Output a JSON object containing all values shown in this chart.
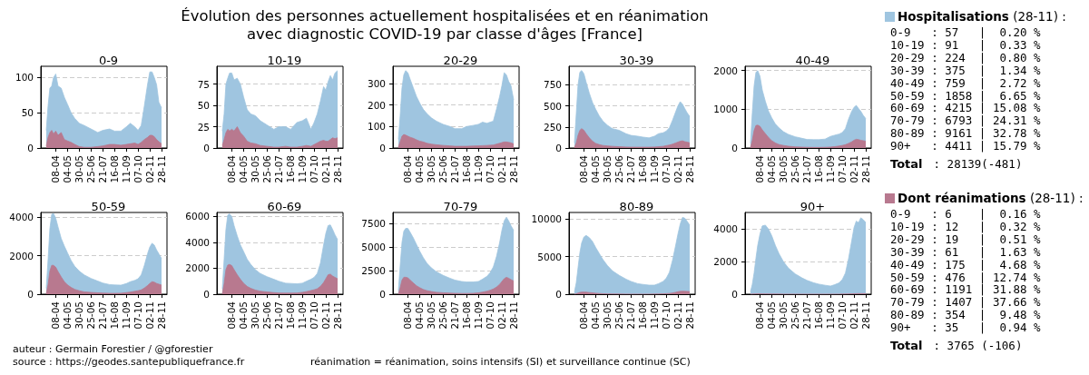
{
  "chart_data": [
    {
      "type": "other",
      "title": "Évolution des personnes actuellement hospitalisées et en réanimation\navec diagnostic COVID-19 par classe d'âges [France]",
      "annotations": [
        "auteur : Germain Forestier / @gforestier",
        "source : https://geodes.santepubliquefrance.fr",
        "réanimation = réanimation, soins intensifs (SI) et surveillance continue (SC)"
      ]
    },
    {
      "type": "area",
      "title": "0-9",
      "grid": "y",
      "xlim": [
        "--03-06",
        "--12-10"
      ],
      "xticks": [
        {
          "value": "--04-08",
          "label": "08-04"
        },
        {
          "value": "--05-04",
          "label": "04-05"
        },
        {
          "value": "--05-30",
          "label": "30-05"
        },
        {
          "value": "--06-25",
          "label": "25-06"
        },
        {
          "value": "--07-21",
          "label": "21-07"
        },
        {
          "value": "--08-16",
          "label": "16-08"
        },
        {
          "value": "--09-11",
          "label": "11-09"
        },
        {
          "value": "--10-07",
          "label": "07-10"
        },
        {
          "value": "--11-02",
          "label": "02-11"
        },
        {
          "value": "--11-28",
          "label": "28-11"
        }
      ],
      "ylim": [
        0,
        116
      ],
      "yticks": [
        0,
        50,
        100
      ],
      "x": [
        "--03-18",
        "--03-22",
        "--03-26",
        "--03-30",
        "--04-03",
        "--04-08",
        "--04-13",
        "--04-20",
        "--04-27",
        "--05-04",
        "--05-12",
        "--05-20",
        "--05-30",
        "--06-10",
        "--06-25",
        "--07-10",
        "--07-21",
        "--08-05",
        "--08-16",
        "--08-30",
        "--09-11",
        "--09-20",
        "--09-30",
        "--10-07",
        "--10-14",
        "--10-21",
        "--10-28",
        "--11-02",
        "--11-07",
        "--11-12",
        "--11-17",
        "--11-22",
        "--11-28"
      ],
      "series": [
        {
          "color": "#9fc5e0",
          "values": [
            25,
            60,
            85,
            88,
            100,
            105,
            88,
            85,
            72,
            62,
            50,
            42,
            35,
            32,
            27,
            22,
            25,
            27,
            24,
            24,
            30,
            35,
            30,
            25,
            32,
            60,
            90,
            108,
            108,
            100,
            90,
            65,
            57
          ]
        },
        {
          "color": "#b8798f",
          "values": [
            3,
            15,
            22,
            25,
            20,
            24,
            18,
            22,
            12,
            10,
            8,
            5,
            2,
            1,
            1,
            2,
            3,
            5,
            5,
            4,
            5,
            6,
            7,
            5,
            8,
            12,
            15,
            18,
            18,
            16,
            12,
            9,
            6
          ]
        }
      ]
    },
    {
      "type": "area",
      "title": "10-19",
      "grid": "y",
      "xlim": [
        "--03-06",
        "--12-10"
      ],
      "xticks": [
        {
          "value": "--04-08",
          "label": "08-04"
        },
        {
          "value": "--05-04",
          "label": "04-05"
        },
        {
          "value": "--05-30",
          "label": "30-05"
        },
        {
          "value": "--06-25",
          "label": "25-06"
        },
        {
          "value": "--07-21",
          "label": "21-07"
        },
        {
          "value": "--08-16",
          "label": "16-08"
        },
        {
          "value": "--09-11",
          "label": "11-09"
        },
        {
          "value": "--10-07",
          "label": "07-10"
        },
        {
          "value": "--11-02",
          "label": "02-11"
        },
        {
          "value": "--11-28",
          "label": "28-11"
        }
      ],
      "ylim": [
        0,
        96
      ],
      "yticks": [
        0,
        25,
        50,
        75
      ],
      "x": [
        "--03-18",
        "--03-22",
        "--03-26",
        "--03-30",
        "--04-03",
        "--04-08",
        "--04-13",
        "--04-20",
        "--04-27",
        "--05-04",
        "--05-12",
        "--05-20",
        "--05-30",
        "--06-10",
        "--06-25",
        "--07-10",
        "--07-21",
        "--08-05",
        "--08-16",
        "--08-30",
        "--09-11",
        "--09-20",
        "--09-30",
        "--10-07",
        "--10-14",
        "--10-21",
        "--10-28",
        "--11-02",
        "--11-07",
        "--11-12",
        "--11-17",
        "--11-22",
        "--11-28"
      ],
      "series": [
        {
          "color": "#9fc5e0",
          "values": [
            20,
            40,
            75,
            82,
            88,
            88,
            80,
            82,
            75,
            60,
            45,
            40,
            38,
            32,
            27,
            22,
            25,
            25,
            22,
            30,
            32,
            35,
            22,
            30,
            40,
            55,
            72,
            68,
            78,
            85,
            80,
            88,
            91
          ]
        },
        {
          "color": "#b8798f",
          "values": [
            3,
            10,
            18,
            22,
            20,
            22,
            20,
            25,
            18,
            14,
            8,
            6,
            5,
            3,
            2,
            1,
            1,
            2,
            1,
            1,
            2,
            3,
            2,
            4,
            6,
            8,
            9,
            8,
            8,
            10,
            12,
            11,
            12
          ]
        }
      ]
    },
    {
      "type": "area",
      "title": "20-29",
      "grid": "y",
      "xlim": [
        "--03-06",
        "--12-10"
      ],
      "xticks": [
        {
          "value": "--04-08",
          "label": "08-04"
        },
        {
          "value": "--05-04",
          "label": "04-05"
        },
        {
          "value": "--05-30",
          "label": "30-05"
        },
        {
          "value": "--06-25",
          "label": "25-06"
        },
        {
          "value": "--07-21",
          "label": "21-07"
        },
        {
          "value": "--08-16",
          "label": "16-08"
        },
        {
          "value": "--09-11",
          "label": "11-09"
        },
        {
          "value": "--10-07",
          "label": "07-10"
        },
        {
          "value": "--11-02",
          "label": "02-11"
        },
        {
          "value": "--11-28",
          "label": "28-11"
        }
      ],
      "ylim": [
        0,
        380
      ],
      "yticks": [
        0,
        100,
        200,
        300
      ],
      "x": [
        "--03-18",
        "--03-22",
        "--03-26",
        "--03-30",
        "--04-03",
        "--04-08",
        "--04-13",
        "--04-20",
        "--04-27",
        "--05-04",
        "--05-12",
        "--05-20",
        "--05-30",
        "--06-10",
        "--06-25",
        "--07-10",
        "--07-21",
        "--08-05",
        "--08-16",
        "--08-30",
        "--09-11",
        "--09-20",
        "--09-30",
        "--10-07",
        "--10-14",
        "--10-21",
        "--10-28",
        "--11-02",
        "--11-07",
        "--11-12",
        "--11-17",
        "--11-22",
        "--11-28"
      ],
      "series": [
        {
          "color": "#9fc5e0",
          "values": [
            40,
            150,
            280,
            340,
            360,
            350,
            320,
            280,
            240,
            210,
            180,
            160,
            140,
            125,
            110,
            100,
            90,
            90,
            100,
            105,
            110,
            120,
            115,
            120,
            125,
            180,
            240,
            290,
            350,
            340,
            310,
            290,
            224
          ]
        },
        {
          "color": "#b8798f",
          "values": [
            5,
            30,
            55,
            63,
            60,
            55,
            50,
            45,
            38,
            32,
            28,
            22,
            18,
            15,
            12,
            10,
            8,
            8,
            8,
            9,
            10,
            11,
            12,
            13,
            14,
            18,
            22,
            25,
            28,
            28,
            26,
            24,
            19
          ]
        }
      ]
    },
    {
      "type": "area",
      "title": "30-39",
      "grid": "y",
      "xlim": [
        "--03-06",
        "--12-10"
      ],
      "xticks": [
        {
          "value": "--04-08",
          "label": "08-04"
        },
        {
          "value": "--05-04",
          "label": "04-05"
        },
        {
          "value": "--05-30",
          "label": "30-05"
        },
        {
          "value": "--06-25",
          "label": "25-06"
        },
        {
          "value": "--07-21",
          "label": "21-07"
        },
        {
          "value": "--08-16",
          "label": "16-08"
        },
        {
          "value": "--09-11",
          "label": "11-09"
        },
        {
          "value": "--10-07",
          "label": "07-10"
        },
        {
          "value": "--11-02",
          "label": "02-11"
        },
        {
          "value": "--11-28",
          "label": "28-11"
        }
      ],
      "ylim": [
        0,
        970
      ],
      "yticks": [
        0,
        250,
        500,
        750
      ],
      "x": [
        "--03-18",
        "--03-22",
        "--03-26",
        "--03-30",
        "--04-03",
        "--04-08",
        "--04-13",
        "--04-20",
        "--04-27",
        "--05-04",
        "--05-12",
        "--05-20",
        "--05-30",
        "--06-10",
        "--06-25",
        "--07-10",
        "--07-21",
        "--08-05",
        "--08-16",
        "--08-30",
        "--09-11",
        "--09-20",
        "--09-30",
        "--10-07",
        "--10-14",
        "--10-21",
        "--10-28",
        "--11-02",
        "--11-07",
        "--11-12",
        "--11-17",
        "--11-22",
        "--11-28"
      ],
      "series": [
        {
          "color": "#9fc5e0",
          "values": [
            60,
            400,
            750,
            900,
            920,
            880,
            780,
            650,
            540,
            460,
            380,
            320,
            270,
            230,
            210,
            170,
            150,
            140,
            130,
            120,
            140,
            170,
            180,
            200,
            240,
            330,
            430,
            500,
            550,
            520,
            470,
            420,
            375
          ]
        },
        {
          "color": "#b8798f",
          "values": [
            5,
            60,
            150,
            210,
            230,
            210,
            170,
            120,
            80,
            55,
            40,
            30,
            25,
            20,
            15,
            12,
            10,
            10,
            10,
            10,
            12,
            15,
            20,
            28,
            35,
            45,
            60,
            70,
            80,
            85,
            75,
            70,
            61
          ]
        }
      ]
    },
    {
      "type": "area",
      "title": "40-49",
      "grid": "y",
      "xlim": [
        "--03-06",
        "--12-10"
      ],
      "xticks": [
        {
          "value": "--04-08",
          "label": "08-04"
        },
        {
          "value": "--05-04",
          "label": "04-05"
        },
        {
          "value": "--05-30",
          "label": "30-05"
        },
        {
          "value": "--06-25",
          "label": "25-06"
        },
        {
          "value": "--07-21",
          "label": "21-07"
        },
        {
          "value": "--08-16",
          "label": "16-08"
        },
        {
          "value": "--09-11",
          "label": "11-09"
        },
        {
          "value": "--10-07",
          "label": "07-10"
        },
        {
          "value": "--11-02",
          "label": "02-11"
        },
        {
          "value": "--11-28",
          "label": "28-11"
        }
      ],
      "ylim": [
        0,
        2110
      ],
      "yticks": [
        0,
        1000,
        2000
      ],
      "x": [
        "--03-18",
        "--03-22",
        "--03-26",
        "--03-30",
        "--04-03",
        "--04-08",
        "--04-13",
        "--04-20",
        "--04-27",
        "--05-04",
        "--05-12",
        "--05-20",
        "--05-30",
        "--06-10",
        "--06-25",
        "--07-10",
        "--07-21",
        "--08-05",
        "--08-16",
        "--08-30",
        "--09-11",
        "--09-20",
        "--09-30",
        "--10-07",
        "--10-14",
        "--10-21",
        "--10-28",
        "--11-02",
        "--11-07",
        "--11-12",
        "--11-17",
        "--11-22",
        "--11-28"
      ],
      "series": [
        {
          "color": "#9fc5e0",
          "values": [
            120,
            900,
            1600,
            1950,
            2000,
            1850,
            1500,
            1200,
            950,
            780,
            620,
            520,
            420,
            350,
            290,
            250,
            220,
            215,
            215,
            230,
            300,
            330,
            360,
            400,
            500,
            750,
            950,
            1050,
            1100,
            1020,
            950,
            850,
            759
          ]
        },
        {
          "color": "#b8798f",
          "values": [
            10,
            200,
            450,
            580,
            590,
            560,
            470,
            370,
            270,
            190,
            130,
            90,
            65,
            45,
            30,
            22,
            18,
            15,
            15,
            18,
            25,
            35,
            50,
            65,
            85,
            120,
            160,
            200,
            225,
            215,
            200,
            190,
            175
          ]
        }
      ]
    },
    {
      "type": "area",
      "title": "50-59",
      "grid": "y",
      "xlim": [
        "--03-06",
        "--12-10"
      ],
      "xticks": [
        {
          "value": "--04-08",
          "label": "08-04"
        },
        {
          "value": "--05-04",
          "label": "04-05"
        },
        {
          "value": "--05-30",
          "label": "30-05"
        },
        {
          "value": "--06-25",
          "label": "25-06"
        },
        {
          "value": "--07-21",
          "label": "21-07"
        },
        {
          "value": "--08-16",
          "label": "16-08"
        },
        {
          "value": "--09-11",
          "label": "11-09"
        },
        {
          "value": "--10-07",
          "label": "07-10"
        },
        {
          "value": "--11-02",
          "label": "02-11"
        },
        {
          "value": "--11-28",
          "label": "28-11"
        }
      ],
      "ylim": [
        0,
        4250
      ],
      "yticks": [
        0,
        2000,
        4000
      ],
      "x": [
        "--03-18",
        "--03-22",
        "--03-26",
        "--03-30",
        "--04-03",
        "--04-08",
        "--04-13",
        "--04-20",
        "--04-27",
        "--05-04",
        "--05-12",
        "--05-20",
        "--05-30",
        "--06-10",
        "--06-25",
        "--07-10",
        "--07-21",
        "--08-05",
        "--08-16",
        "--08-30",
        "--09-11",
        "--09-20",
        "--09-30",
        "--10-07",
        "--10-14",
        "--10-21",
        "--10-28",
        "--11-02",
        "--11-07",
        "--11-12",
        "--11-17",
        "--11-22",
        "--11-28"
      ],
      "series": [
        {
          "color": "#9fc5e0",
          "values": [
            300,
            1800,
            3400,
            4150,
            4200,
            3950,
            3500,
            2900,
            2500,
            2150,
            1750,
            1450,
            1200,
            1000,
            820,
            680,
            580,
            500,
            480,
            470,
            550,
            650,
            720,
            800,
            1000,
            1500,
            2100,
            2450,
            2650,
            2550,
            2300,
            2100,
            1858
          ]
        },
        {
          "color": "#b8798f",
          "values": [
            30,
            500,
            1200,
            1500,
            1500,
            1400,
            1180,
            900,
            650,
            480,
            350,
            250,
            180,
            120,
            90,
            70,
            55,
            45,
            45,
            50,
            80,
            110,
            150,
            180,
            220,
            320,
            450,
            560,
            650,
            620,
            560,
            520,
            476
          ]
        }
      ]
    },
    {
      "type": "area",
      "title": "60-69",
      "grid": "y",
      "xlim": [
        "--03-06",
        "--12-10"
      ],
      "xticks": [
        {
          "value": "--04-08",
          "label": "08-04"
        },
        {
          "value": "--05-04",
          "label": "04-05"
        },
        {
          "value": "--05-30",
          "label": "30-05"
        },
        {
          "value": "--06-25",
          "label": "25-06"
        },
        {
          "value": "--07-21",
          "label": "21-07"
        },
        {
          "value": "--08-16",
          "label": "16-08"
        },
        {
          "value": "--09-11",
          "label": "11-09"
        },
        {
          "value": "--10-07",
          "label": "07-10"
        },
        {
          "value": "--11-02",
          "label": "02-11"
        },
        {
          "value": "--11-28",
          "label": "28-11"
        }
      ],
      "ylim": [
        0,
        6310
      ],
      "yticks": [
        0,
        2000,
        4000,
        6000
      ],
      "x": [
        "--03-18",
        "--03-22",
        "--03-26",
        "--03-30",
        "--04-03",
        "--04-08",
        "--04-13",
        "--04-20",
        "--04-27",
        "--05-04",
        "--05-12",
        "--05-20",
        "--05-30",
        "--06-10",
        "--06-25",
        "--07-10",
        "--07-21",
        "--08-05",
        "--08-16",
        "--08-30",
        "--09-11",
        "--09-20",
        "--09-30",
        "--10-07",
        "--10-14",
        "--10-21",
        "--10-28",
        "--11-02",
        "--11-07",
        "--11-12",
        "--11-17",
        "--11-22",
        "--11-28"
      ],
      "series": [
        {
          "color": "#9fc5e0",
          "values": [
            400,
            2700,
            5000,
            6100,
            6200,
            6000,
            5300,
            4500,
            3800,
            3300,
            2700,
            2300,
            1900,
            1600,
            1350,
            1150,
            1000,
            850,
            830,
            800,
            850,
            1000,
            1150,
            1300,
            1600,
            2400,
            3800,
            4700,
            5300,
            5350,
            5000,
            4600,
            4215
          ]
        },
        {
          "color": "#b8798f",
          "values": [
            40,
            800,
            1900,
            2250,
            2300,
            2200,
            1900,
            1500,
            1150,
            850,
            600,
            450,
            320,
            230,
            170,
            120,
            90,
            80,
            80,
            90,
            140,
            200,
            280,
            340,
            420,
            600,
            900,
            1200,
            1500,
            1550,
            1400,
            1300,
            1191
          ]
        }
      ]
    },
    {
      "type": "area",
      "title": "70-79",
      "grid": "y",
      "xlim": [
        "--03-06",
        "--12-10"
      ],
      "xticks": [
        {
          "value": "--04-08",
          "label": "08-04"
        },
        {
          "value": "--05-04",
          "label": "04-05"
        },
        {
          "value": "--05-30",
          "label": "30-05"
        },
        {
          "value": "--06-25",
          "label": "25-06"
        },
        {
          "value": "--07-21",
          "label": "21-07"
        },
        {
          "value": "--08-16",
          "label": "16-08"
        },
        {
          "value": "--09-11",
          "label": "11-09"
        },
        {
          "value": "--10-07",
          "label": "07-10"
        },
        {
          "value": "--11-02",
          "label": "02-11"
        },
        {
          "value": "--11-28",
          "label": "28-11"
        }
      ],
      "ylim": [
        0,
        8700
      ],
      "yticks": [
        0,
        2500,
        5000,
        7500
      ],
      "x": [
        "--03-18",
        "--03-22",
        "--03-26",
        "--03-30",
        "--04-03",
        "--04-08",
        "--04-13",
        "--04-20",
        "--04-27",
        "--05-04",
        "--05-12",
        "--05-20",
        "--05-30",
        "--06-10",
        "--06-25",
        "--07-10",
        "--07-21",
        "--08-05",
        "--08-16",
        "--08-30",
        "--09-11",
        "--09-20",
        "--09-30",
        "--10-07",
        "--10-14",
        "--10-21",
        "--10-28",
        "--11-02",
        "--11-07",
        "--11-12",
        "--11-17",
        "--11-22",
        "--11-28"
      ],
      "series": [
        {
          "color": "#9fc5e0",
          "values": [
            400,
            3000,
            5500,
            6700,
            7000,
            7000,
            6600,
            6000,
            5300,
            4600,
            3900,
            3300,
            2800,
            2400,
            2000,
            1700,
            1500,
            1350,
            1300,
            1300,
            1350,
            1600,
            1900,
            2300,
            2900,
            4000,
            5500,
            6800,
            7800,
            8200,
            7800,
            7300,
            6793
          ]
        },
        {
          "color": "#b8798f",
          "values": [
            30,
            700,
            1500,
            1800,
            1800,
            1750,
            1500,
            1200,
            900,
            700,
            500,
            380,
            280,
            200,
            150,
            110,
            90,
            80,
            80,
            90,
            140,
            220,
            320,
            420,
            550,
            750,
            1050,
            1350,
            1650,
            1800,
            1700,
            1550,
            1407
          ]
        }
      ]
    },
    {
      "type": "area",
      "title": "80-89",
      "grid": "y",
      "xlim": [
        "--03-06",
        "--12-10"
      ],
      "xticks": [
        {
          "value": "--04-08",
          "label": "08-04"
        },
        {
          "value": "--05-04",
          "label": "04-05"
        },
        {
          "value": "--05-30",
          "label": "30-05"
        },
        {
          "value": "--06-25",
          "label": "25-06"
        },
        {
          "value": "--07-21",
          "label": "21-07"
        },
        {
          "value": "--08-16",
          "label": "16-08"
        },
        {
          "value": "--09-11",
          "label": "11-09"
        },
        {
          "value": "--10-07",
          "label": "07-10"
        },
        {
          "value": "--11-02",
          "label": "02-11"
        },
        {
          "value": "--11-28",
          "label": "28-11"
        }
      ],
      "ylim": [
        0,
        10850
      ],
      "yticks": [
        0,
        5000,
        10000
      ],
      "x": [
        "--03-18",
        "--03-22",
        "--03-26",
        "--03-30",
        "--04-03",
        "--04-08",
        "--04-13",
        "--04-20",
        "--04-27",
        "--05-04",
        "--05-12",
        "--05-20",
        "--05-30",
        "--06-10",
        "--06-25",
        "--07-10",
        "--07-21",
        "--08-05",
        "--08-16",
        "--08-30",
        "--09-11",
        "--09-20",
        "--09-30",
        "--10-07",
        "--10-14",
        "--10-21",
        "--10-28",
        "--11-02",
        "--11-07",
        "--11-12",
        "--11-17",
        "--11-22",
        "--11-28"
      ],
      "series": [
        {
          "color": "#9fc5e0",
          "values": [
            300,
            1500,
            3500,
            5500,
            6800,
            7600,
            7800,
            7500,
            7000,
            6200,
            5400,
            4600,
            3800,
            3100,
            2500,
            2000,
            1700,
            1400,
            1300,
            1200,
            1200,
            1400,
            1700,
            2100,
            2900,
            4500,
            6500,
            8000,
            9300,
            10200,
            10100,
            9700,
            9161
          ]
        },
        {
          "color": "#b8798f",
          "values": [
            5,
            60,
            150,
            230,
            270,
            280,
            260,
            220,
            170,
            130,
            90,
            65,
            45,
            30,
            20,
            15,
            12,
            10,
            10,
            12,
            20,
            30,
            50,
            70,
            100,
            160,
            250,
            320,
            380,
            400,
            390,
            370,
            354
          ]
        }
      ]
    },
    {
      "type": "area",
      "title": "90+",
      "grid": "y",
      "xlim": [
        "--03-06",
        "--12-10"
      ],
      "xticks": [
        {
          "value": "--04-08",
          "label": "08-04"
        },
        {
          "value": "--05-04",
          "label": "04-05"
        },
        {
          "value": "--05-30",
          "label": "30-05"
        },
        {
          "value": "--06-25",
          "label": "25-06"
        },
        {
          "value": "--07-21",
          "label": "21-07"
        },
        {
          "value": "--08-16",
          "label": "16-08"
        },
        {
          "value": "--09-11",
          "label": "11-09"
        },
        {
          "value": "--10-07",
          "label": "07-10"
        },
        {
          "value": "--11-02",
          "label": "02-11"
        },
        {
          "value": "--11-28",
          "label": "28-11"
        }
      ],
      "ylim": [
        0,
        5030
      ],
      "yticks": [
        0,
        2000,
        4000
      ],
      "x": [
        "--03-18",
        "--03-22",
        "--03-26",
        "--03-30",
        "--04-03",
        "--04-08",
        "--04-13",
        "--04-20",
        "--04-27",
        "--05-04",
        "--05-12",
        "--05-20",
        "--05-30",
        "--06-10",
        "--06-25",
        "--07-10",
        "--07-21",
        "--08-05",
        "--08-16",
        "--08-30",
        "--09-11",
        "--09-20",
        "--09-30",
        "--10-07",
        "--10-14",
        "--10-21",
        "--10-28",
        "--11-02",
        "--11-07",
        "--11-12",
        "--11-17",
        "--11-22",
        "--11-28"
      ],
      "series": [
        {
          "color": "#9fc5e0",
          "values": [
            150,
            600,
            1300,
            2200,
            3000,
            3700,
            4200,
            4250,
            4000,
            3600,
            3000,
            2500,
            2000,
            1600,
            1250,
            1000,
            850,
            700,
            620,
            550,
            500,
            580,
            700,
            900,
            1300,
            2200,
            3300,
            4100,
            4500,
            4400,
            4700,
            4600,
            4411
          ]
        },
        {
          "color": "#b8798f",
          "values": [
            2,
            8,
            15,
            20,
            22,
            22,
            20,
            18,
            15,
            12,
            10,
            8,
            6,
            5,
            4,
            3,
            3,
            3,
            3,
            3,
            4,
            5,
            6,
            8,
            12,
            18,
            25,
            30,
            34,
            36,
            36,
            35,
            35
          ]
        }
      ]
    },
    {
      "type": "other",
      "title": "Hospitalisations",
      "subtitle": "(28-11) :",
      "annotations": [
        "0-9   : 57   |  0.20 %",
        "10-19 : 91   |  0.33 %",
        "20-29 : 224  |  0.80 %",
        "30-39 : 375  |  1.34 %",
        "40-49 : 759  |  2.72 %",
        "50-59 : 1858 |  6.65 %",
        "60-69 : 4215 | 15.08 %",
        "70-79 : 6793 | 24.31 %",
        "80-89 : 9161 | 32.78 %",
        "90+   : 4411 | 15.79 %",
        "Total : 28139(-481)"
      ]
    },
    {
      "type": "other",
      "title": "Dont réanimations",
      "subtitle": "(28-11) :",
      "annotations": [
        "0-9   : 6    |  0.16 %",
        "10-19 : 12   |  0.32 %",
        "20-29 : 19   |  0.51 %",
        "30-39 : 61   |  1.63 %",
        "40-49 : 175  |  4.68 %",
        "50-59 : 476  | 12.74 %",
        "60-69 : 1191 | 31.88 %",
        "70-79 : 1407 | 37.66 %",
        "80-89 : 354  |  9.48 %",
        "90+   : 35   |  0.94 %",
        "Total : 3765 (-106)"
      ]
    }
  ]
}
